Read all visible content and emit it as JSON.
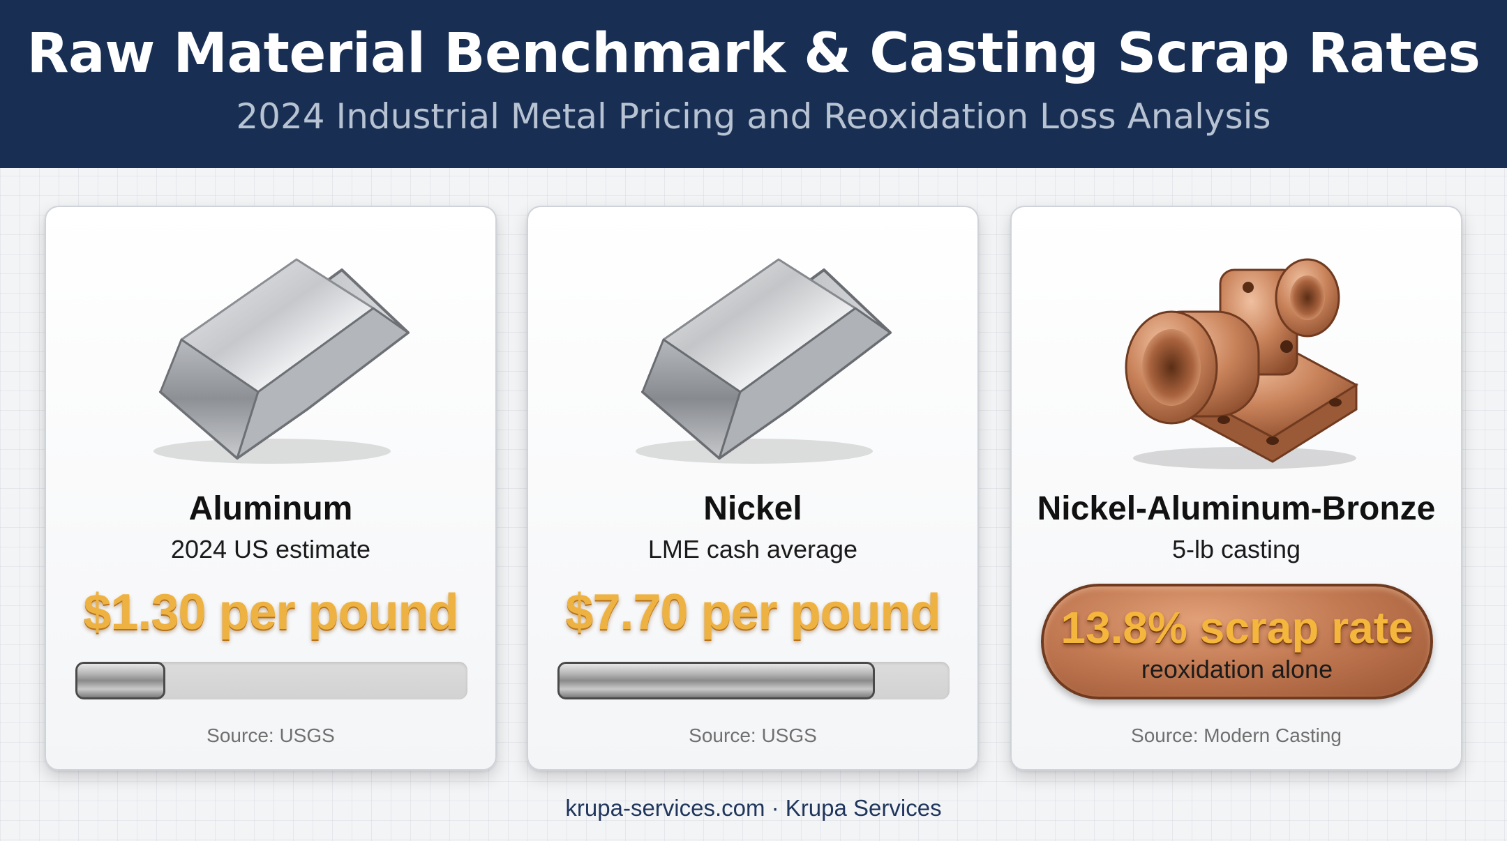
{
  "header": {
    "title": "Raw Material Benchmark & Casting Scrap Rates",
    "subtitle": "2024 Industrial Metal Pricing and Reoxidation Loss Analysis"
  },
  "cards": [
    {
      "name": "Aluminum",
      "description": "2024 US estimate",
      "price": "$1.30 per pound",
      "bar_fill_fraction": 0.23,
      "source": "Source: USGS",
      "icon": "aluminum-ingot-icon"
    },
    {
      "name": "Nickel",
      "description": "LME cash average",
      "price": "$7.70 per pound",
      "bar_fill_fraction": 0.81,
      "source": "Source: USGS",
      "icon": "nickel-ingot-icon"
    },
    {
      "name": "Nickel-Aluminum-Bronze",
      "description": "5-lb casting",
      "scrap_rate": "13.8% scrap rate",
      "scrap_note": "reoxidation alone",
      "source": "Source: Modern Casting",
      "icon": "bronze-casting-icon"
    }
  ],
  "footer": {
    "text": "krupa-services.com · Krupa Services"
  },
  "colors": {
    "header_bg": "#182f53",
    "price_gold": "#eeb242",
    "bronze": "#c27a53"
  }
}
